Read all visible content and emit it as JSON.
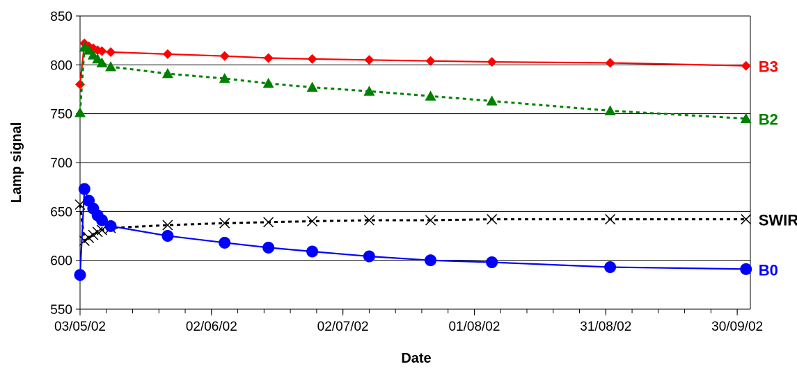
{
  "chart_data": {
    "type": "line",
    "xlabel": "Date",
    "ylabel": "Lamp signal",
    "ylim": [
      550,
      850
    ],
    "yticks": [
      "550",
      "600",
      "650",
      "700",
      "750",
      "800",
      "850"
    ],
    "xlim": [
      "03/05/02",
      "03/10/02"
    ],
    "xticks": [
      "03/05/02",
      "02/06/02",
      "02/07/02",
      "01/08/02",
      "31/08/02",
      "30/09/02"
    ],
    "grid": "horizontal",
    "series": [
      {
        "name": "B3",
        "color": "#ff0000",
        "marker": "diamond",
        "line": "solid",
        "points": [
          [
            "03/05/02",
            780
          ],
          [
            "04/05/02",
            822
          ],
          [
            "05/05/02",
            819
          ],
          [
            "06/05/02",
            817
          ],
          [
            "07/05/02",
            815
          ],
          [
            "08/05/02",
            814
          ],
          [
            "10/05/02",
            813
          ],
          [
            "23/05/02",
            811
          ],
          [
            "05/06/02",
            809
          ],
          [
            "15/06/02",
            807
          ],
          [
            "25/06/02",
            806
          ],
          [
            "08/07/02",
            805
          ],
          [
            "22/07/02",
            804
          ],
          [
            "05/08/02",
            803
          ],
          [
            "01/09/02",
            802
          ],
          [
            "02/10/02",
            799
          ]
        ]
      },
      {
        "name": "B2",
        "color": "#008000",
        "marker": "triangle",
        "line": "dotted",
        "points": [
          [
            "03/05/02",
            751
          ],
          [
            "04/05/02",
            818
          ],
          [
            "05/05/02",
            815
          ],
          [
            "06/05/02",
            810
          ],
          [
            "07/05/02",
            806
          ],
          [
            "08/05/02",
            802
          ],
          [
            "10/05/02",
            798
          ],
          [
            "23/05/02",
            791
          ],
          [
            "05/06/02",
            786
          ],
          [
            "15/06/02",
            781
          ],
          [
            "25/06/02",
            777
          ],
          [
            "08/07/02",
            773
          ],
          [
            "22/07/02",
            768
          ],
          [
            "05/08/02",
            763
          ],
          [
            "01/09/02",
            753
          ],
          [
            "02/10/02",
            745
          ]
        ]
      },
      {
        "name": "SWIR",
        "color": "#000000",
        "marker": "x",
        "line": "dotted",
        "points": [
          [
            "03/05/02",
            657
          ],
          [
            "04/05/02",
            620
          ],
          [
            "05/05/02",
            623
          ],
          [
            "06/05/02",
            626
          ],
          [
            "07/05/02",
            629
          ],
          [
            "08/05/02",
            631
          ],
          [
            "10/05/02",
            633
          ],
          [
            "23/05/02",
            636
          ],
          [
            "05/06/02",
            638
          ],
          [
            "15/06/02",
            639
          ],
          [
            "25/06/02",
            640
          ],
          [
            "08/07/02",
            641
          ],
          [
            "22/07/02",
            641
          ],
          [
            "05/08/02",
            642
          ],
          [
            "01/09/02",
            642
          ],
          [
            "02/10/02",
            642
          ]
        ]
      },
      {
        "name": "B0",
        "color": "#0000ff",
        "marker": "circle",
        "line": "solid",
        "points": [
          [
            "03/05/02",
            585
          ],
          [
            "04/05/02",
            673
          ],
          [
            "05/05/02",
            661
          ],
          [
            "06/05/02",
            653
          ],
          [
            "07/05/02",
            646
          ],
          [
            "08/05/02",
            641
          ],
          [
            "10/05/02",
            635
          ],
          [
            "23/05/02",
            625
          ],
          [
            "05/06/02",
            618
          ],
          [
            "15/06/02",
            613
          ],
          [
            "25/06/02",
            609
          ],
          [
            "08/07/02",
            604
          ],
          [
            "22/07/02",
            600
          ],
          [
            "05/08/02",
            598
          ],
          [
            "01/09/02",
            593
          ],
          [
            "02/10/02",
            591
          ]
        ]
      }
    ]
  }
}
